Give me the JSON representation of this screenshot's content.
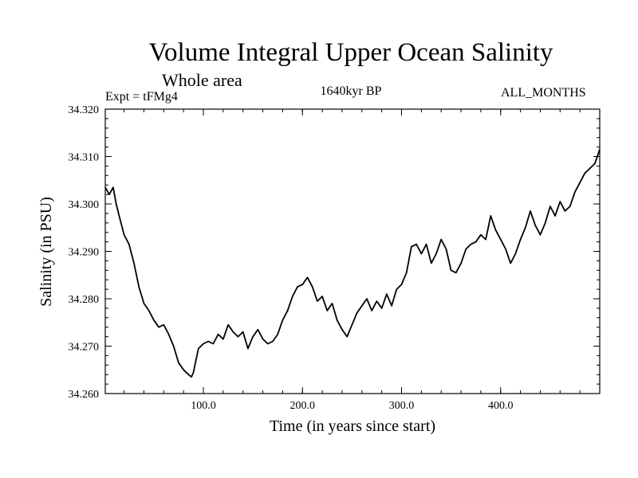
{
  "chart_data": {
    "type": "line",
    "title": "Volume Integral Upper Ocean Salinity",
    "subtitle": "Whole area",
    "expt_label": "Expt = tFMg4",
    "period_label": "1640kyr BP",
    "months_label": "ALL_MONTHS",
    "xlabel": "Time (in years since start)",
    "ylabel": "Salinity (in PSU)",
    "xlim": [
      1,
      500
    ],
    "ylim": [
      34.26,
      34.32
    ],
    "x_ticks": [
      100,
      200,
      300,
      400
    ],
    "x_tick_labels": [
      "100.0",
      "200.0",
      "300.0",
      "400.0"
    ],
    "y_ticks": [
      34.26,
      34.27,
      34.28,
      34.29,
      34.3,
      34.31,
      34.32
    ],
    "y_tick_labels": [
      "34.260",
      "34.270",
      "34.280",
      "34.290",
      "34.300",
      "34.310",
      "34.320"
    ],
    "series": [
      {
        "name": "Salinity",
        "x": [
          1,
          5,
          9,
          12,
          15,
          20,
          25,
          30,
          35,
          40,
          45,
          50,
          55,
          60,
          65,
          70,
          75,
          80,
          85,
          88,
          90,
          95,
          100,
          105,
          110,
          115,
          120,
          125,
          130,
          135,
          140,
          145,
          150,
          155,
          160,
          165,
          170,
          175,
          180,
          185,
          190,
          195,
          200,
          205,
          210,
          215,
          220,
          225,
          230,
          235,
          240,
          245,
          250,
          255,
          260,
          265,
          270,
          275,
          280,
          285,
          290,
          295,
          300,
          305,
          310,
          315,
          320,
          325,
          330,
          335,
          340,
          345,
          350,
          355,
          360,
          365,
          370,
          375,
          380,
          385,
          390,
          395,
          400,
          405,
          410,
          415,
          420,
          425,
          430,
          435,
          440,
          445,
          450,
          455,
          460,
          465,
          470,
          475,
          480,
          485,
          490,
          495,
          500
        ],
        "values": [
          34.3035,
          34.302,
          34.3035,
          34.3,
          34.2975,
          34.2935,
          34.2915,
          34.2875,
          34.2825,
          34.279,
          34.2775,
          34.2755,
          34.274,
          34.2745,
          34.2725,
          34.27,
          34.2665,
          34.265,
          34.264,
          34.2635,
          34.2645,
          34.2695,
          34.2705,
          34.271,
          34.2705,
          34.2725,
          34.2715,
          34.2745,
          34.273,
          34.272,
          34.273,
          34.2695,
          34.272,
          34.2735,
          34.2715,
          34.2705,
          34.271,
          34.2725,
          34.2755,
          34.2775,
          34.2805,
          34.2825,
          34.283,
          34.2845,
          34.2825,
          34.2795,
          34.2805,
          34.2775,
          34.279,
          34.2755,
          34.2735,
          34.272,
          34.2745,
          34.277,
          34.2785,
          34.28,
          34.2775,
          34.2795,
          34.278,
          34.281,
          34.2785,
          34.282,
          34.283,
          34.2855,
          34.291,
          34.2915,
          34.2895,
          34.2915,
          34.2875,
          34.2895,
          34.2925,
          34.2905,
          34.286,
          34.2855,
          34.2875,
          34.2905,
          34.2915,
          34.292,
          34.2935,
          34.2925,
          34.2975,
          34.2945,
          34.2925,
          34.2905,
          34.2875,
          34.2895,
          34.2925,
          34.295,
          34.2985,
          34.2955,
          34.2935,
          34.296,
          34.2995,
          34.2975,
          34.3005,
          34.2985,
          34.2995,
          34.3025,
          34.3045,
          34.3065,
          34.3075,
          34.3085,
          34.3115
        ]
      }
    ]
  }
}
